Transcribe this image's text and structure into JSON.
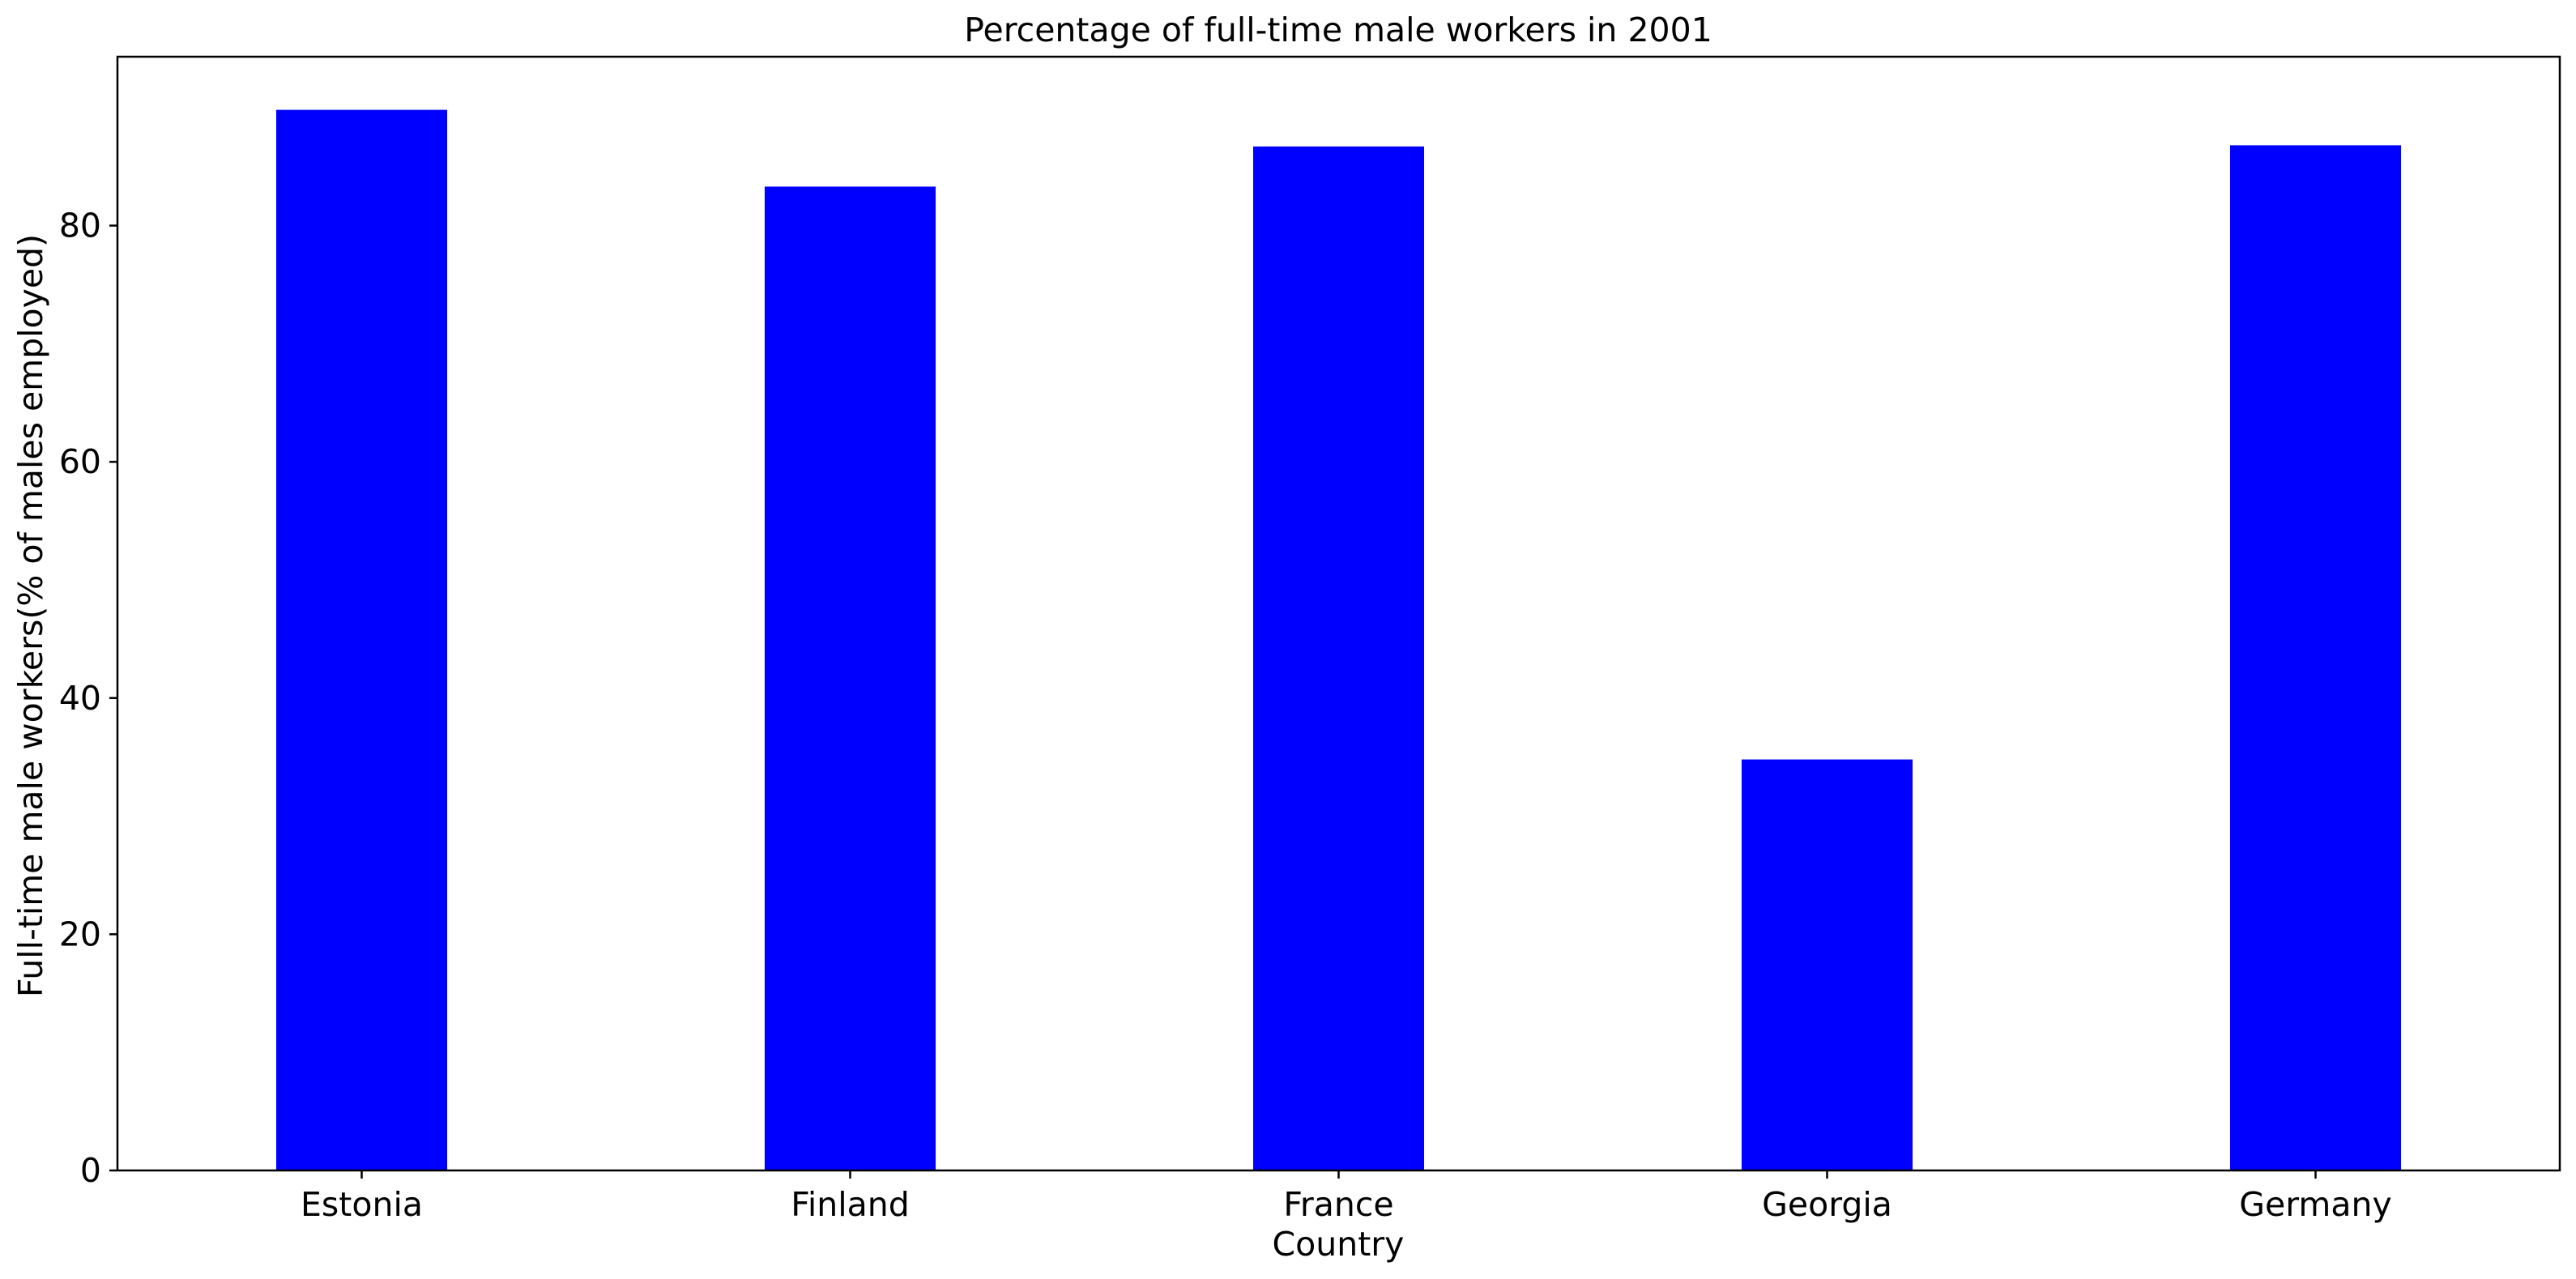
{
  "chart_data": {
    "type": "bar",
    "title": "Percentage of full-time male workers in 2001",
    "xlabel": "Country",
    "ylabel": "Full-time male workers(% of males employed)",
    "categories": [
      "Estonia",
      "Finland",
      "France",
      "Georgia",
      "Germany"
    ],
    "values": [
      89.8,
      83.3,
      86.7,
      34.8,
      86.8
    ],
    "ylim": [
      0,
      94.3
    ],
    "yticks": [
      0,
      20,
      40,
      60,
      80
    ],
    "grid": false,
    "legend": "none",
    "bar_color": "#0000ff"
  }
}
